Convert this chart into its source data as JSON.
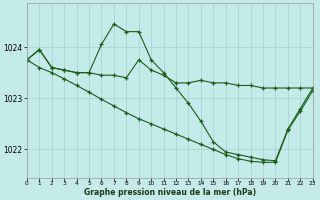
{
  "title": "Graphe pression niveau de la mer (hPa)",
  "bg_color": "#c5eaea",
  "grid_color": "#aad4d4",
  "line_color": "#1a5c1a",
  "xlim": [
    0,
    23
  ],
  "ylim": [
    1021.45,
    1024.85
  ],
  "yticks": [
    1022,
    1023,
    1024
  ],
  "xticks": [
    0,
    1,
    2,
    3,
    4,
    5,
    6,
    7,
    8,
    9,
    10,
    11,
    12,
    13,
    14,
    15,
    16,
    17,
    18,
    19,
    20,
    21,
    22,
    23
  ],
  "s1_x": [
    0,
    1,
    2,
    3,
    4,
    5,
    6,
    7,
    8,
    9,
    10,
    11,
    12,
    13,
    14,
    15,
    16,
    17,
    18,
    19,
    20,
    21,
    22,
    23
  ],
  "s1_y": [
    1023.75,
    1023.95,
    1023.6,
    1023.55,
    1023.5,
    1023.5,
    1023.45,
    1023.45,
    1023.4,
    1023.75,
    1023.55,
    1023.45,
    1023.3,
    1023.3,
    1023.35,
    1023.3,
    1023.3,
    1023.25,
    1023.25,
    1023.2,
    1023.2,
    1023.2,
    1023.2,
    1023.2
  ],
  "s2_x": [
    0,
    1,
    2,
    3,
    4,
    5,
    6,
    7,
    8,
    9,
    10,
    11,
    12,
    13,
    14,
    15,
    16,
    17,
    18,
    19,
    20,
    21,
    22,
    23
  ],
  "s2_y": [
    1023.75,
    1023.95,
    1023.6,
    1023.55,
    1023.5,
    1023.5,
    1024.05,
    1024.45,
    1024.3,
    1024.3,
    1023.75,
    1023.5,
    1023.2,
    1022.9,
    1022.55,
    1022.15,
    1021.95,
    1021.9,
    1021.85,
    1021.8,
    1021.78,
    1022.4,
    1022.8,
    1023.2
  ],
  "s3_x": [
    0,
    1,
    2,
    3,
    4,
    5,
    6,
    7,
    8,
    9,
    10,
    11,
    12,
    13,
    14,
    15,
    16,
    17,
    18,
    19,
    20,
    21,
    22,
    23
  ],
  "s3_y": [
    1023.75,
    1023.6,
    1023.5,
    1023.38,
    1023.25,
    1023.12,
    1022.98,
    1022.85,
    1022.72,
    1022.6,
    1022.5,
    1022.4,
    1022.3,
    1022.2,
    1022.1,
    1022.0,
    1021.9,
    1021.82,
    1021.77,
    1021.75,
    1021.75,
    1022.38,
    1022.75,
    1023.15
  ]
}
